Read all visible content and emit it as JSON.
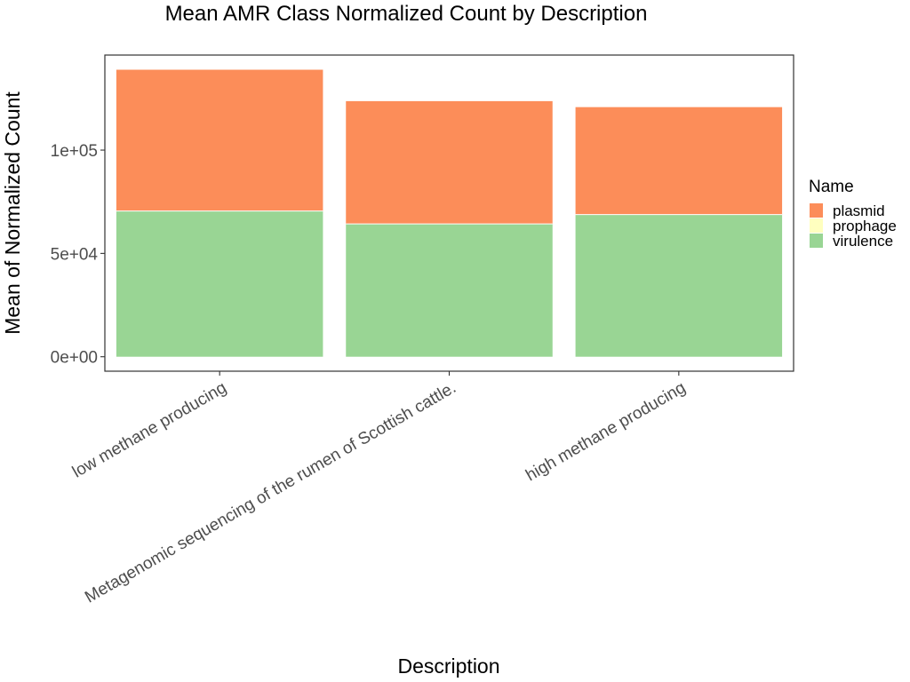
{
  "chart_data": {
    "type": "bar",
    "stacked": true,
    "title": "Mean AMR Class Normalized Count by Description",
    "xlabel": "Description",
    "ylabel": "Mean of Normalized Count",
    "categories": [
      "low methane producing",
      "Metagenomic sequencing of the rumen of Scottish cattle.",
      "high methane producing"
    ],
    "series": [
      {
        "name": "virulence",
        "color": "#99d594",
        "values": [
          70500,
          64300,
          68800
        ]
      },
      {
        "name": "prophage",
        "color": "#ffffbf",
        "values": [
          0,
          0,
          0
        ]
      },
      {
        "name": "plasmid",
        "color": "#fc8d59",
        "values": [
          68400,
          59400,
          52000
        ]
      }
    ],
    "ylim": [
      -7000,
      146000
    ],
    "yticks": [
      0,
      50000,
      100000
    ],
    "ytick_labels": [
      "0e+00",
      "5e+04",
      "1e+05"
    ],
    "grid": false,
    "legend": {
      "title": "Name",
      "position": "right",
      "items": [
        "plasmid",
        "prophage",
        "virulence"
      ]
    }
  }
}
